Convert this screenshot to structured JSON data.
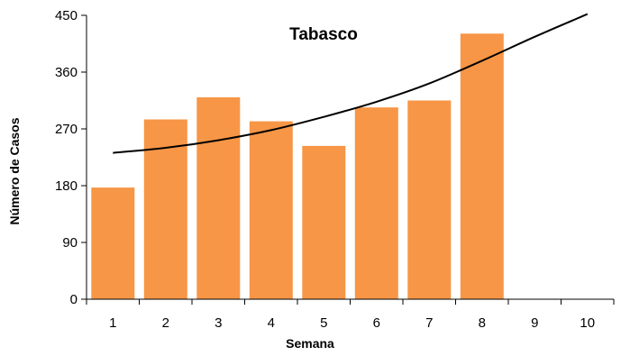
{
  "chart_data": {
    "type": "bar",
    "title": "Tabasco",
    "xlabel": "Semana",
    "ylabel": "Número de Casos",
    "categories": [
      "1",
      "2",
      "3",
      "4",
      "5",
      "6",
      "7",
      "8",
      "9",
      "10"
    ],
    "series": [
      {
        "values": [
          177,
          285,
          320,
          282,
          243,
          304,
          315,
          421,
          null,
          null
        ],
        "color": "#F79646"
      }
    ],
    "trendline": {
      "type": "polynomial",
      "x": [
        1,
        2,
        3,
        4,
        5,
        6,
        7,
        8,
        9,
        10
      ],
      "y": [
        232,
        240,
        252,
        268,
        289,
        313,
        342,
        378,
        416,
        452
      ],
      "color": "#000000"
    },
    "ylim": [
      0,
      450
    ],
    "yticks": [
      0,
      90,
      180,
      270,
      360,
      450
    ],
    "grid": false,
    "legend": "none"
  }
}
